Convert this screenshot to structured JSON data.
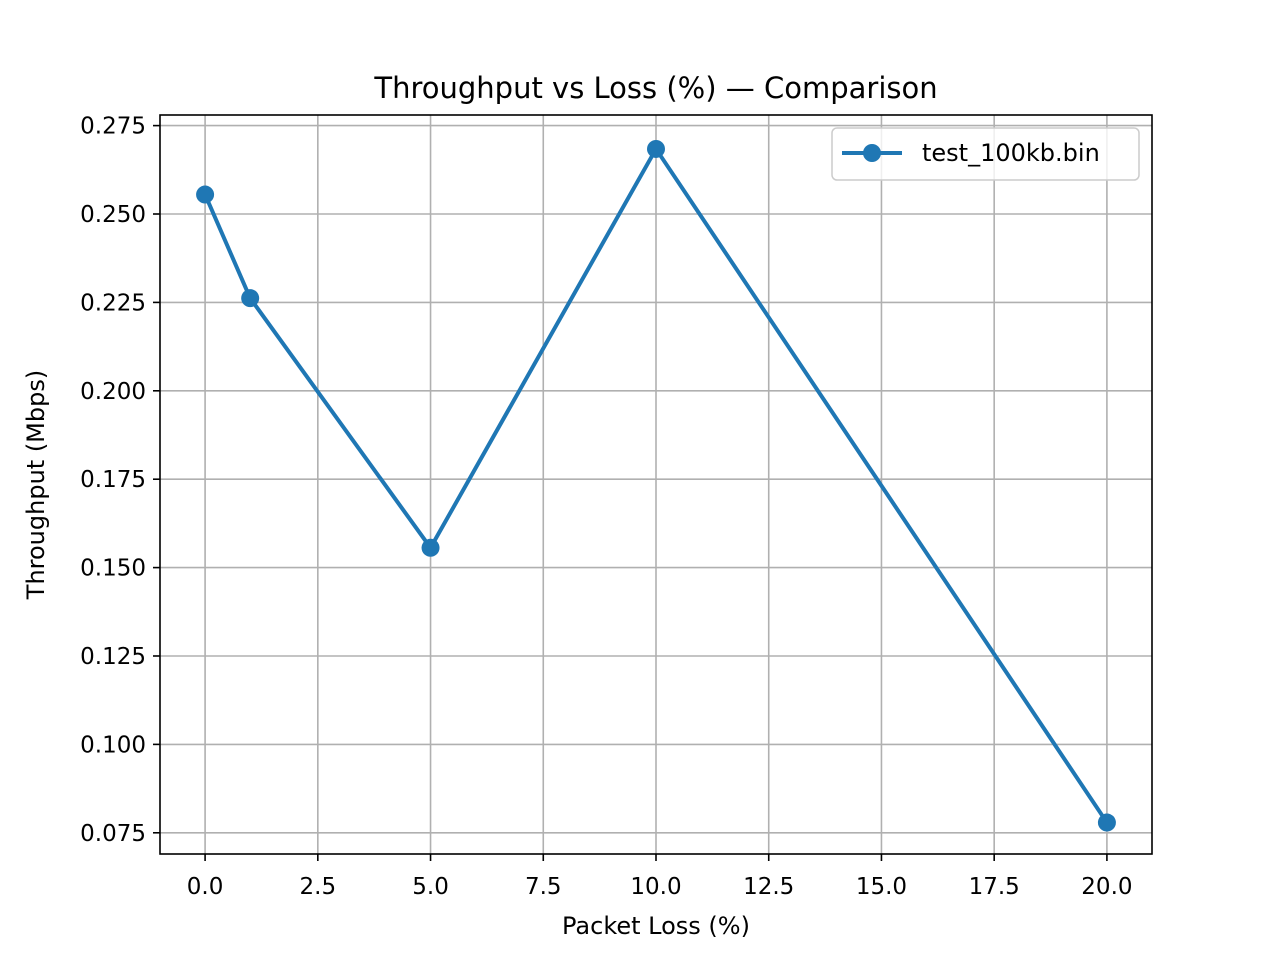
{
  "chart_data": {
    "type": "line",
    "title": "Throughput vs Loss (%) — Comparison",
    "xlabel": "Packet Loss (%)",
    "ylabel": "Throughput (Mbps)",
    "xlim": [
      -1.0,
      21.0
    ],
    "ylim": [
      0.069,
      0.278
    ],
    "x_ticks": [
      0.0,
      2.5,
      5.0,
      7.5,
      10.0,
      12.5,
      15.0,
      17.5,
      20.0
    ],
    "x_tick_labels": [
      "0.0",
      "2.5",
      "5.0",
      "7.5",
      "10.0",
      "12.5",
      "15.0",
      "17.5",
      "20.0"
    ],
    "y_ticks": [
      0.075,
      0.1,
      0.125,
      0.15,
      0.175,
      0.2,
      0.225,
      0.25,
      0.275
    ],
    "y_tick_labels": [
      "0.075",
      "0.100",
      "0.125",
      "0.150",
      "0.175",
      "0.200",
      "0.225",
      "0.250",
      "0.275"
    ],
    "grid": true,
    "legend_position": "top-right",
    "series": [
      {
        "name": "test_100kb.bin",
        "color": "#1f77b4",
        "x": [
          0,
          1,
          5,
          10,
          20
        ],
        "y": [
          0.2555,
          0.2262,
          0.1556,
          0.2684,
          0.0779
        ]
      }
    ]
  }
}
